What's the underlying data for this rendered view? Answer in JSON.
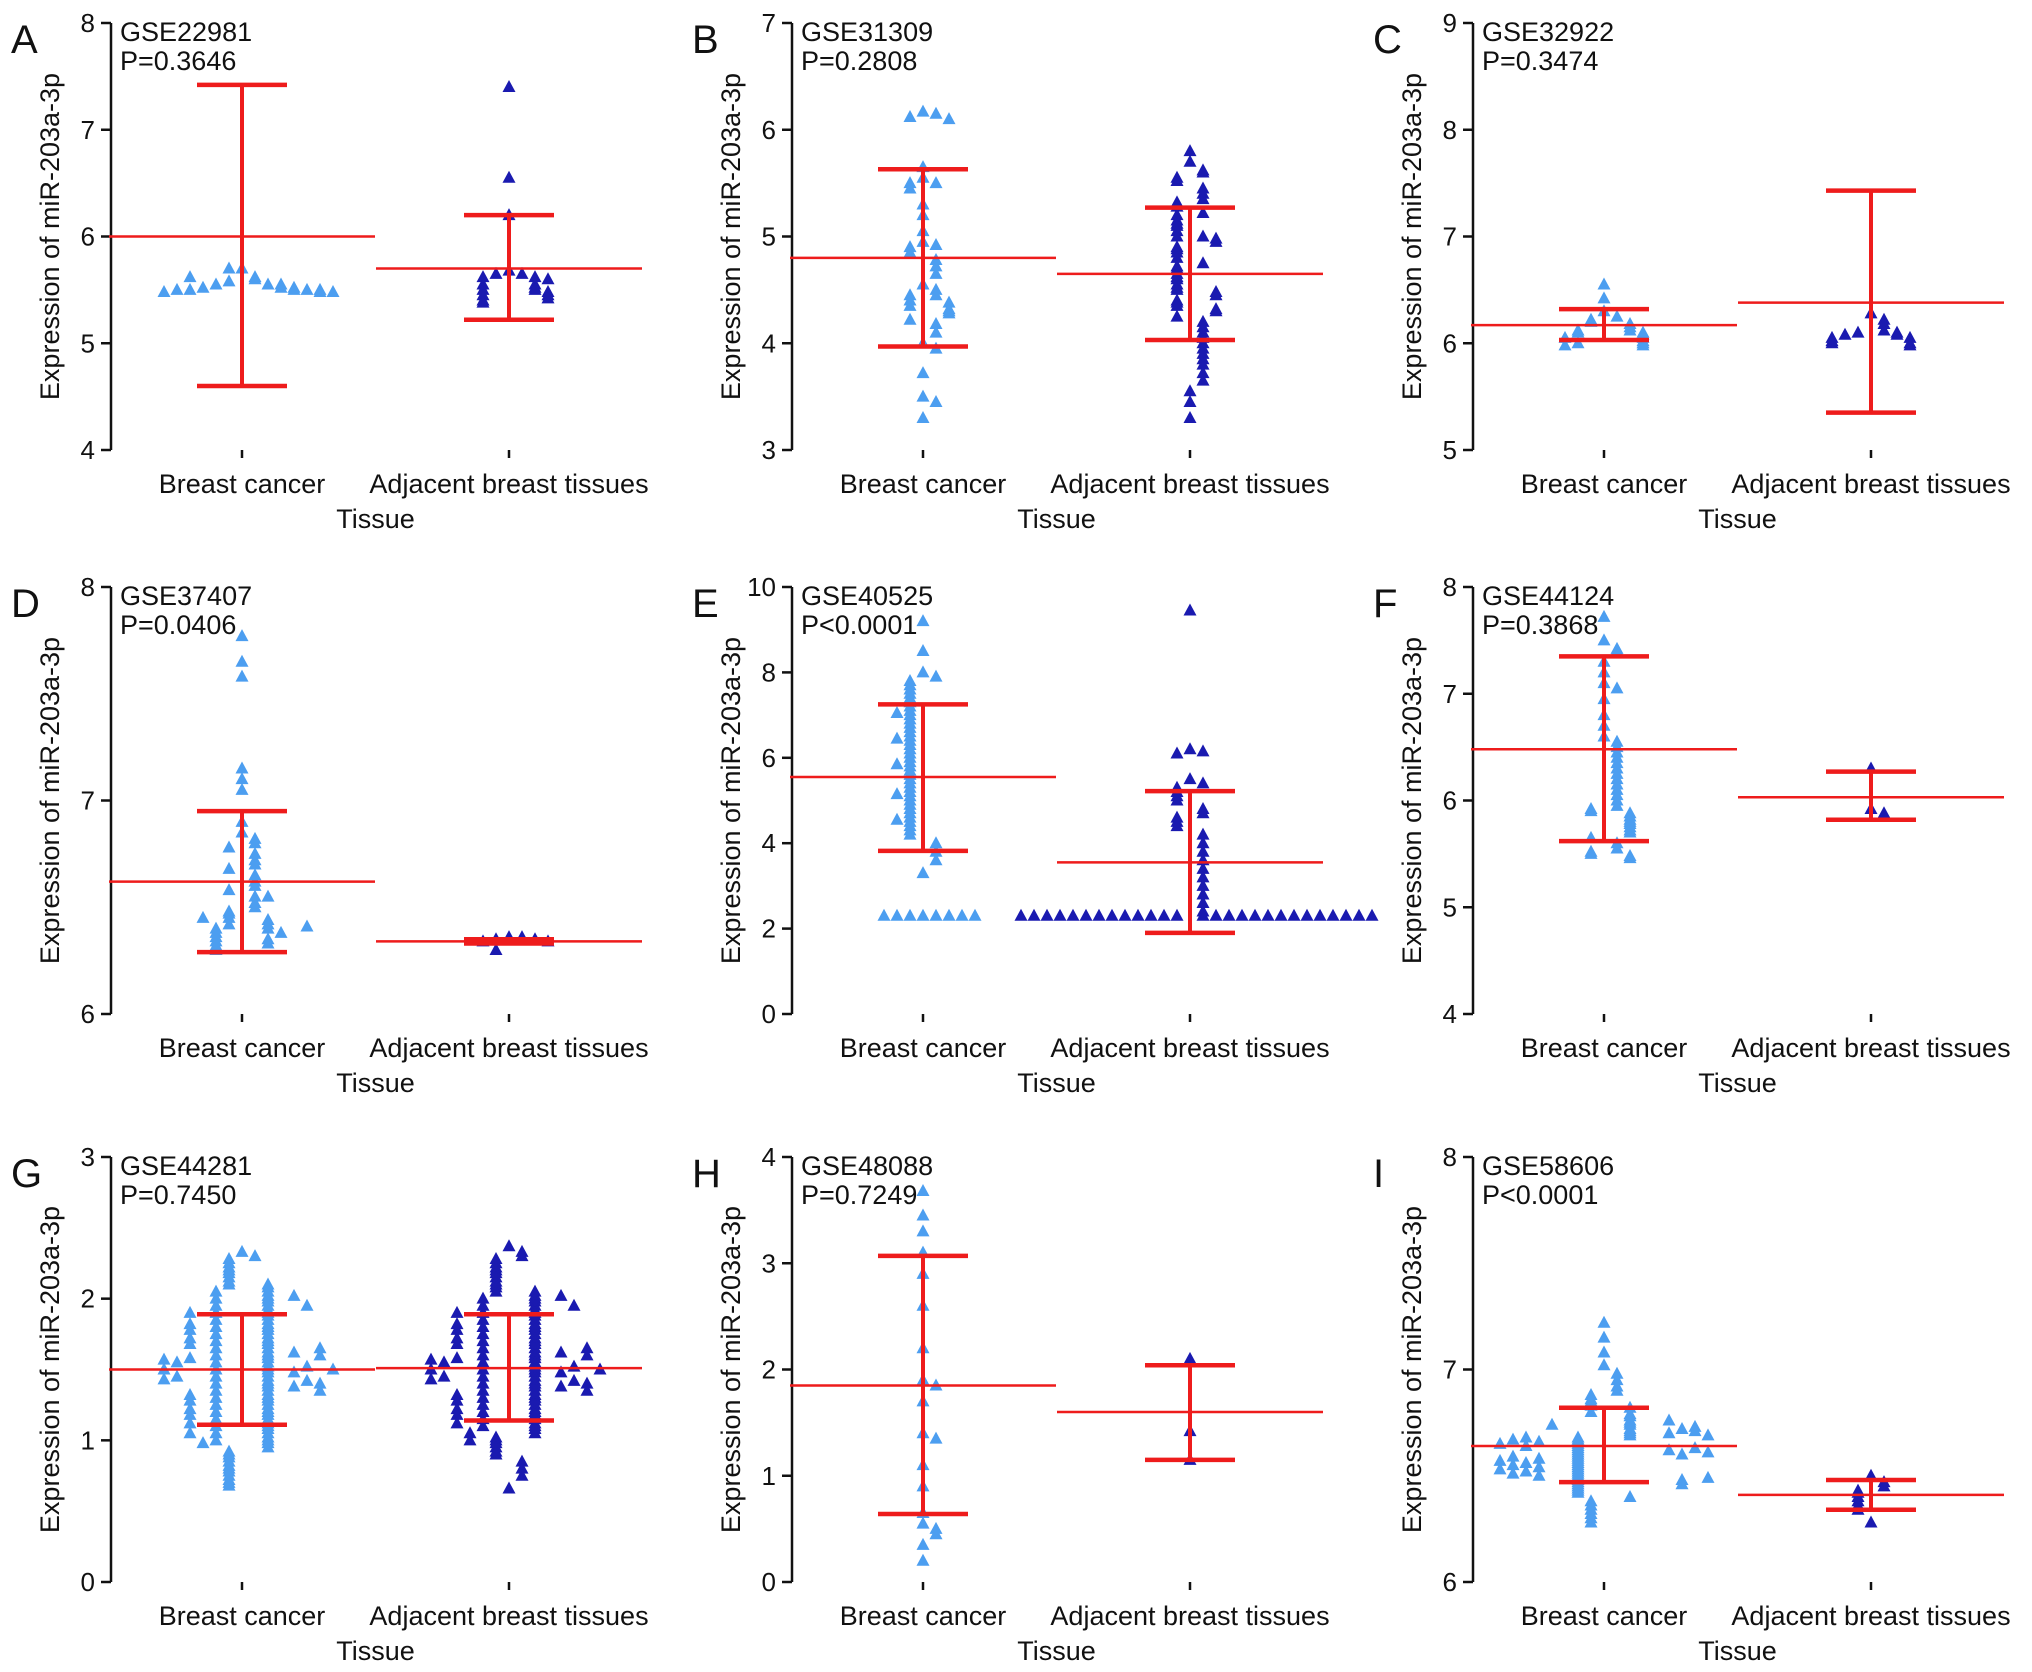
{
  "colors": {
    "breast_cancer": "#4c9ef0",
    "adjacent": "#1a1ab0",
    "summary": "#ee1c1c"
  },
  "chart_data": [
    {
      "panel": "A",
      "type": "scatter",
      "dataset": "GSE22981",
      "p_value": "P=0.3646",
      "xlabel": "Tissue",
      "ylabel": "Expression of miR-203a-3p",
      "categories": [
        "Breast cancer",
        "Adjacent breast tissues"
      ],
      "ylim": [
        4,
        8
      ],
      "yticks": [
        "4",
        "5",
        "6",
        "7",
        "8"
      ],
      "groups": [
        {
          "name": "Breast cancer",
          "mean": 6.0,
          "sd_low": 4.6,
          "sd_high": 7.42,
          "points": [
            5.7,
            5.62,
            5.6,
            5.58,
            5.55,
            5.55,
            5.55,
            5.52,
            5.52,
            5.52,
            5.5,
            5.5,
            5.5,
            5.5,
            5.5,
            5.48,
            5.48,
            5.48,
            5.7,
            5.62
          ]
        },
        {
          "name": "Adjacent breast tissues",
          "mean": 5.7,
          "sd_low": 5.22,
          "sd_high": 6.2,
          "points": [
            7.4,
            6.55,
            6.2,
            5.68,
            5.65,
            5.65,
            5.62,
            5.62,
            5.6,
            5.55,
            5.55,
            5.52,
            5.5,
            5.5,
            5.48,
            5.45,
            5.45,
            5.42,
            5.4,
            5.38
          ]
        }
      ]
    },
    {
      "panel": "B",
      "type": "scatter",
      "dataset": "GSE31309",
      "p_value": "P=0.2808",
      "xlabel": "Tissue",
      "ylabel": "Expression of miR-203a-3p",
      "categories": [
        "Breast cancer",
        "Adjacent breast tissues"
      ],
      "ylim": [
        3,
        7
      ],
      "yticks": [
        "3",
        "4",
        "5",
        "6",
        "7"
      ],
      "groups": [
        {
          "name": "Breast cancer",
          "mean": 4.8,
          "sd_low": 3.97,
          "sd_high": 5.63,
          "points": [
            6.17,
            6.15,
            6.12,
            6.1,
            5.65,
            5.55,
            5.5,
            5.5,
            5.45,
            5.3,
            5.2,
            5.05,
            4.95,
            4.92,
            4.9,
            4.85,
            4.78,
            4.72,
            4.65,
            4.55,
            4.5,
            4.45,
            4.45,
            4.4,
            4.38,
            4.35,
            4.32,
            4.3,
            4.28,
            4.22,
            4.18,
            4.1,
            4.0,
            3.95,
            3.72,
            3.5,
            3.45,
            3.3
          ]
        },
        {
          "name": "Adjacent breast tissues",
          "mean": 4.65,
          "sd_low": 4.03,
          "sd_high": 5.27,
          "points": [
            5.8,
            5.7,
            5.62,
            5.6,
            5.55,
            5.52,
            5.45,
            5.4,
            5.35,
            5.32,
            5.28,
            5.22,
            5.2,
            5.15,
            5.12,
            5.1,
            5.05,
            5.0,
            5.0,
            4.98,
            4.95,
            4.9,
            4.88,
            4.85,
            4.8,
            4.75,
            4.72,
            4.7,
            4.65,
            4.62,
            4.6,
            4.55,
            4.52,
            4.5,
            4.48,
            4.45,
            4.4,
            4.38,
            4.35,
            4.32,
            4.3,
            4.25,
            4.2,
            4.15,
            4.1,
            4.05,
            4.0,
            3.95,
            3.9,
            3.85,
            3.8,
            3.72,
            3.65,
            3.55,
            3.45,
            3.3
          ]
        }
      ]
    },
    {
      "panel": "C",
      "type": "scatter",
      "dataset": "GSE32922",
      "p_value": "P=0.3474",
      "xlabel": "Tissue",
      "ylabel": "Expression of miR-203a-3p",
      "categories": [
        "Breast cancer",
        "Adjacent breast tissues"
      ],
      "ylim": [
        5,
        9
      ],
      "yticks": [
        "5",
        "6",
        "7",
        "8",
        "9"
      ],
      "groups": [
        {
          "name": "Breast cancer",
          "mean": 6.17,
          "sd_low": 6.03,
          "sd_high": 6.32,
          "points": [
            6.55,
            6.42,
            6.3,
            6.25,
            6.22,
            6.2,
            6.18,
            6.15,
            6.12,
            6.12,
            6.1,
            6.1,
            6.08,
            6.05,
            6.05,
            6.02,
            6.0,
            6.0,
            5.98,
            5.98
          ]
        },
        {
          "name": "Adjacent breast tissues",
          "mean": 6.38,
          "sd_low": 5.35,
          "sd_high": 7.43,
          "points": [
            6.28,
            6.22,
            6.18,
            6.12,
            6.1,
            6.1,
            6.08,
            6.08,
            6.05,
            6.05,
            6.02,
            6.0,
            6.0,
            5.98
          ]
        }
      ]
    },
    {
      "panel": "D",
      "type": "scatter",
      "dataset": "GSE37407",
      "p_value": "P=0.0406",
      "xlabel": "Tissue",
      "ylabel": "Expression of miR-203a-3p",
      "categories": [
        "Breast cancer",
        "Adjacent breast tissues"
      ],
      "ylim": [
        6,
        8
      ],
      "yticks": [
        "6",
        "7",
        "8"
      ],
      "groups": [
        {
          "name": "Breast cancer",
          "mean": 6.62,
          "sd_low": 6.29,
          "sd_high": 6.95,
          "points": [
            7.77,
            7.65,
            7.58,
            7.15,
            7.1,
            7.05,
            6.9,
            6.85,
            6.82,
            6.8,
            6.78,
            6.75,
            6.72,
            6.7,
            6.68,
            6.65,
            6.62,
            6.6,
            6.58,
            6.55,
            6.52,
            6.5,
            6.48,
            6.47,
            6.45,
            6.44,
            6.42,
            6.42,
            6.4,
            6.4,
            6.38,
            6.38,
            6.36,
            6.35,
            6.34,
            6.33,
            6.32,
            6.31,
            6.3,
            6.55,
            6.45,
            6.41
          ]
        },
        {
          "name": "Adjacent breast tissues",
          "mean": 6.34,
          "sd_low": 6.33,
          "sd_high": 6.35,
          "points": [
            6.36,
            6.36,
            6.35,
            6.35,
            6.34,
            6.34,
            6.3
          ]
        }
      ]
    },
    {
      "panel": "E",
      "type": "scatter",
      "dataset": "GSE40525",
      "p_value": "P<0.0001",
      "xlabel": "Tissue",
      "ylabel": "Expression of miR-203a-3p",
      "categories": [
        "Breast cancer",
        "Adjacent breast tissues"
      ],
      "ylim": [
        0,
        10
      ],
      "yticks": [
        "0",
        "2",
        "4",
        "6",
        "8",
        "10"
      ],
      "groups": [
        {
          "name": "Breast cancer",
          "mean": 5.55,
          "sd_low": 3.82,
          "sd_high": 7.25,
          "points": [
            9.2,
            8.5,
            8.0,
            7.9,
            7.8,
            7.7,
            7.6,
            7.5,
            7.4,
            7.3,
            7.2,
            7.1,
            7.0,
            6.9,
            6.8,
            6.7,
            6.6,
            6.5,
            6.4,
            6.3,
            6.2,
            6.1,
            6.0,
            5.9,
            5.8,
            5.7,
            5.6,
            5.5,
            5.4,
            5.3,
            5.2,
            5.1,
            5.0,
            4.9,
            4.8,
            4.7,
            4.6,
            4.5,
            4.4,
            4.3,
            4.2,
            4.0,
            3.8,
            3.6,
            3.3,
            2.3,
            2.3,
            2.3,
            2.3,
            2.3,
            2.3,
            2.3,
            2.3,
            5.85,
            4.55,
            6.45,
            7.05,
            5.15
          ]
        },
        {
          "name": "Adjacent breast tissues",
          "mean": 3.55,
          "sd_low": 1.9,
          "sd_high": 5.22,
          "points": [
            9.45,
            6.2,
            6.15,
            6.1,
            5.5,
            5.4,
            5.3,
            5.2,
            5.1,
            5.0,
            4.8,
            4.7,
            4.6,
            4.5,
            4.4,
            4.2,
            4.0,
            3.8,
            3.6,
            3.4,
            3.2,
            3.0,
            2.8,
            2.6,
            2.4,
            2.3,
            2.3,
            2.3,
            2.3,
            2.3,
            2.3,
            2.3,
            2.3,
            2.3,
            2.3,
            2.3,
            2.3,
            2.3,
            2.3,
            2.3,
            2.3,
            2.3,
            2.3,
            2.3,
            2.3,
            2.3,
            2.3,
            2.3,
            2.3,
            2.3,
            2.3,
            2.3
          ]
        }
      ]
    },
    {
      "panel": "F",
      "type": "scatter",
      "dataset": "GSE44124",
      "p_value": "P=0.3868",
      "xlabel": "Tissue",
      "ylabel": "Expression of miR-203a-3p",
      "categories": [
        "Breast cancer",
        "Adjacent breast tissues"
      ],
      "ylim": [
        4,
        8
      ],
      "yticks": [
        "4",
        "5",
        "6",
        "7",
        "8"
      ],
      "groups": [
        {
          "name": "Breast cancer",
          "mean": 6.48,
          "sd_low": 5.62,
          "sd_high": 7.35,
          "points": [
            7.72,
            7.5,
            7.42,
            7.4,
            7.3,
            7.2,
            7.1,
            7.05,
            6.95,
            6.8,
            6.7,
            6.6,
            6.55,
            6.5,
            6.45,
            6.4,
            6.35,
            6.3,
            6.25,
            6.2,
            6.15,
            6.1,
            6.05,
            6.0,
            5.95,
            5.92,
            5.9,
            5.88,
            5.85,
            5.82,
            5.8,
            5.78,
            5.75,
            5.72,
            5.7,
            5.65,
            5.6,
            5.55,
            5.52,
            5.5,
            5.48,
            5.46
          ]
        },
        {
          "name": "Adjacent breast tissues",
          "mean": 6.03,
          "sd_low": 5.82,
          "sd_high": 6.27,
          "points": [
            6.3,
            5.92,
            5.88
          ]
        }
      ]
    },
    {
      "panel": "G",
      "type": "scatter",
      "dataset": "GSE44281",
      "p_value": "P=0.7450",
      "xlabel": "Tissue",
      "ylabel": "Expression of miR-203a-3p",
      "categories": [
        "Breast cancer",
        "Adjacent breast tissues"
      ],
      "ylim": [
        0,
        3
      ],
      "yticks": [
        "0",
        "1",
        "2",
        "3"
      ],
      "groups": [
        {
          "name": "Breast cancer",
          "mean": 1.5,
          "sd_low": 1.11,
          "sd_high": 1.89,
          "points": [
            2.33,
            2.3,
            2.28,
            2.25,
            2.22,
            2.2,
            2.18,
            2.15,
            2.12,
            2.1,
            2.1,
            2.08,
            2.05,
            2.05,
            2.02,
            2.0,
            2.0,
            1.98,
            1.95,
            1.95,
            1.92,
            1.9,
            1.9,
            1.88,
            1.85,
            1.85,
            1.82,
            1.8,
            1.8,
            1.78,
            1.75,
            1.75,
            1.72,
            1.7,
            1.7,
            1.68,
            1.65,
            1.65,
            1.62,
            1.6,
            1.6,
            1.58,
            1.55,
            1.55,
            1.52,
            1.5,
            1.5,
            1.48,
            1.45,
            1.45,
            1.42,
            1.4,
            1.4,
            1.38,
            1.35,
            1.35,
            1.32,
            1.3,
            1.3,
            1.28,
            1.25,
            1.25,
            1.22,
            1.2,
            1.2,
            1.18,
            1.15,
            1.15,
            1.12,
            1.1,
            1.1,
            1.08,
            1.05,
            1.05,
            1.02,
            1.0,
            1.0,
            0.98,
            0.95,
            0.92,
            0.9,
            0.88,
            0.85,
            0.82,
            0.8,
            0.78,
            0.75,
            0.72,
            0.7,
            0.68,
            1.62,
            1.48,
            1.38,
            1.58,
            1.52,
            1.42,
            1.68,
            1.32,
            1.72,
            1.28,
            1.55,
            1.45,
            1.6,
            1.4,
            1.5,
            1.65,
            1.35,
            1.78,
            1.22,
            1.82,
            1.18,
            1.9,
            1.12,
            1.95,
            1.05,
            2.02,
            0.98,
            1.5,
            1.57,
            1.43
          ]
        },
        {
          "name": "Adjacent breast tissues",
          "mean": 1.51,
          "sd_low": 1.14,
          "sd_high": 1.89,
          "points": [
            2.37,
            2.33,
            2.3,
            2.28,
            2.25,
            2.22,
            2.2,
            2.18,
            2.15,
            2.12,
            2.1,
            2.08,
            2.05,
            2.05,
            2.02,
            2.0,
            2.0,
            1.98,
            1.95,
            1.95,
            1.92,
            1.9,
            1.9,
            1.88,
            1.85,
            1.85,
            1.82,
            1.8,
            1.8,
            1.78,
            1.75,
            1.75,
            1.72,
            1.7,
            1.7,
            1.68,
            1.65,
            1.65,
            1.62,
            1.6,
            1.6,
            1.58,
            1.55,
            1.55,
            1.52,
            1.5,
            1.5,
            1.48,
            1.45,
            1.45,
            1.42,
            1.4,
            1.4,
            1.38,
            1.35,
            1.35,
            1.32,
            1.3,
            1.3,
            1.28,
            1.25,
            1.25,
            1.22,
            1.2,
            1.2,
            1.18,
            1.15,
            1.15,
            1.12,
            1.1,
            1.1,
            1.08,
            1.05,
            1.02,
            1.0,
            0.98,
            0.95,
            0.92,
            0.9,
            0.85,
            0.8,
            0.75,
            0.66,
            1.62,
            1.48,
            1.38,
            1.58,
            1.52,
            1.42,
            1.68,
            1.32,
            1.72,
            1.28,
            1.55,
            1.45,
            1.6,
            1.4,
            1.5,
            1.65,
            1.35,
            1.78,
            1.22,
            1.82,
            1.18,
            1.9,
            1.12,
            1.95,
            1.05,
            2.02,
            1.0,
            1.5,
            1.57,
            1.43
          ]
        }
      ]
    },
    {
      "panel": "H",
      "type": "scatter",
      "dataset": "GSE48088",
      "p_value": "P=0.7249",
      "xlabel": "Tissue",
      "ylabel": "Expression of miR-203a-3p",
      "categories": [
        "Breast cancer",
        "Adjacent breast tissues"
      ],
      "ylim": [
        0,
        4
      ],
      "yticks": [
        "0",
        "1",
        "2",
        "3",
        "4"
      ],
      "groups": [
        {
          "name": "Breast cancer",
          "mean": 1.85,
          "sd_low": 0.64,
          "sd_high": 3.07,
          "points": [
            3.68,
            3.45,
            3.3,
            3.1,
            2.9,
            2.6,
            2.2,
            1.9,
            1.85,
            1.7,
            1.4,
            1.35,
            1.1,
            0.9,
            0.65,
            0.55,
            0.5,
            0.45,
            0.35,
            0.2
          ]
        },
        {
          "name": "Adjacent breast tissues",
          "mean": 1.6,
          "sd_low": 1.15,
          "sd_high": 2.04,
          "points": [
            2.1,
            1.42,
            1.15
          ]
        }
      ]
    },
    {
      "panel": "I",
      "type": "scatter",
      "dataset": "GSE58606",
      "p_value": "P<0.0001",
      "xlabel": "Tissue",
      "ylabel": "Expression of miR-203a-3p",
      "categories": [
        "Breast cancer",
        "Adjacent breast tissues"
      ],
      "ylim": [
        6,
        8
      ],
      "yticks": [
        "6",
        "7",
        "8"
      ],
      "groups": [
        {
          "name": "Breast cancer",
          "mean": 6.64,
          "sd_low": 6.47,
          "sd_high": 6.82,
          "points": [
            7.22,
            7.15,
            7.08,
            7.02,
            6.98,
            6.95,
            6.92,
            6.9,
            6.88,
            6.86,
            6.85,
            6.83,
            6.82,
            6.8,
            6.79,
            6.78,
            6.76,
            6.75,
            6.74,
            6.72,
            6.71,
            6.7,
            6.69,
            6.68,
            6.67,
            6.66,
            6.65,
            6.64,
            6.63,
            6.62,
            6.61,
            6.6,
            6.59,
            6.58,
            6.57,
            6.56,
            6.55,
            6.54,
            6.53,
            6.52,
            6.51,
            6.5,
            6.49,
            6.48,
            6.47,
            6.46,
            6.45,
            6.44,
            6.43,
            6.42,
            6.4,
            6.38,
            6.36,
            6.34,
            6.32,
            6.3,
            6.28,
            6.62,
            6.66,
            6.58,
            6.7,
            6.54,
            6.74,
            6.5,
            6.6,
            6.64,
            6.56,
            6.68,
            6.52,
            6.72,
            6.48,
            6.76,
            6.46,
            6.63,
            6.59,
            6.67,
            6.55,
            6.71,
            6.51,
            6.61,
            6.65,
            6.57,
            6.69,
            6.53,
            6.73,
            6.49
          ]
        },
        {
          "name": "Adjacent breast tissues",
          "mean": 6.41,
          "sd_low": 6.34,
          "sd_high": 6.48,
          "points": [
            6.5,
            6.47,
            6.45,
            6.43,
            6.42,
            6.4,
            6.38,
            6.36,
            6.34,
            6.28
          ]
        }
      ]
    }
  ]
}
